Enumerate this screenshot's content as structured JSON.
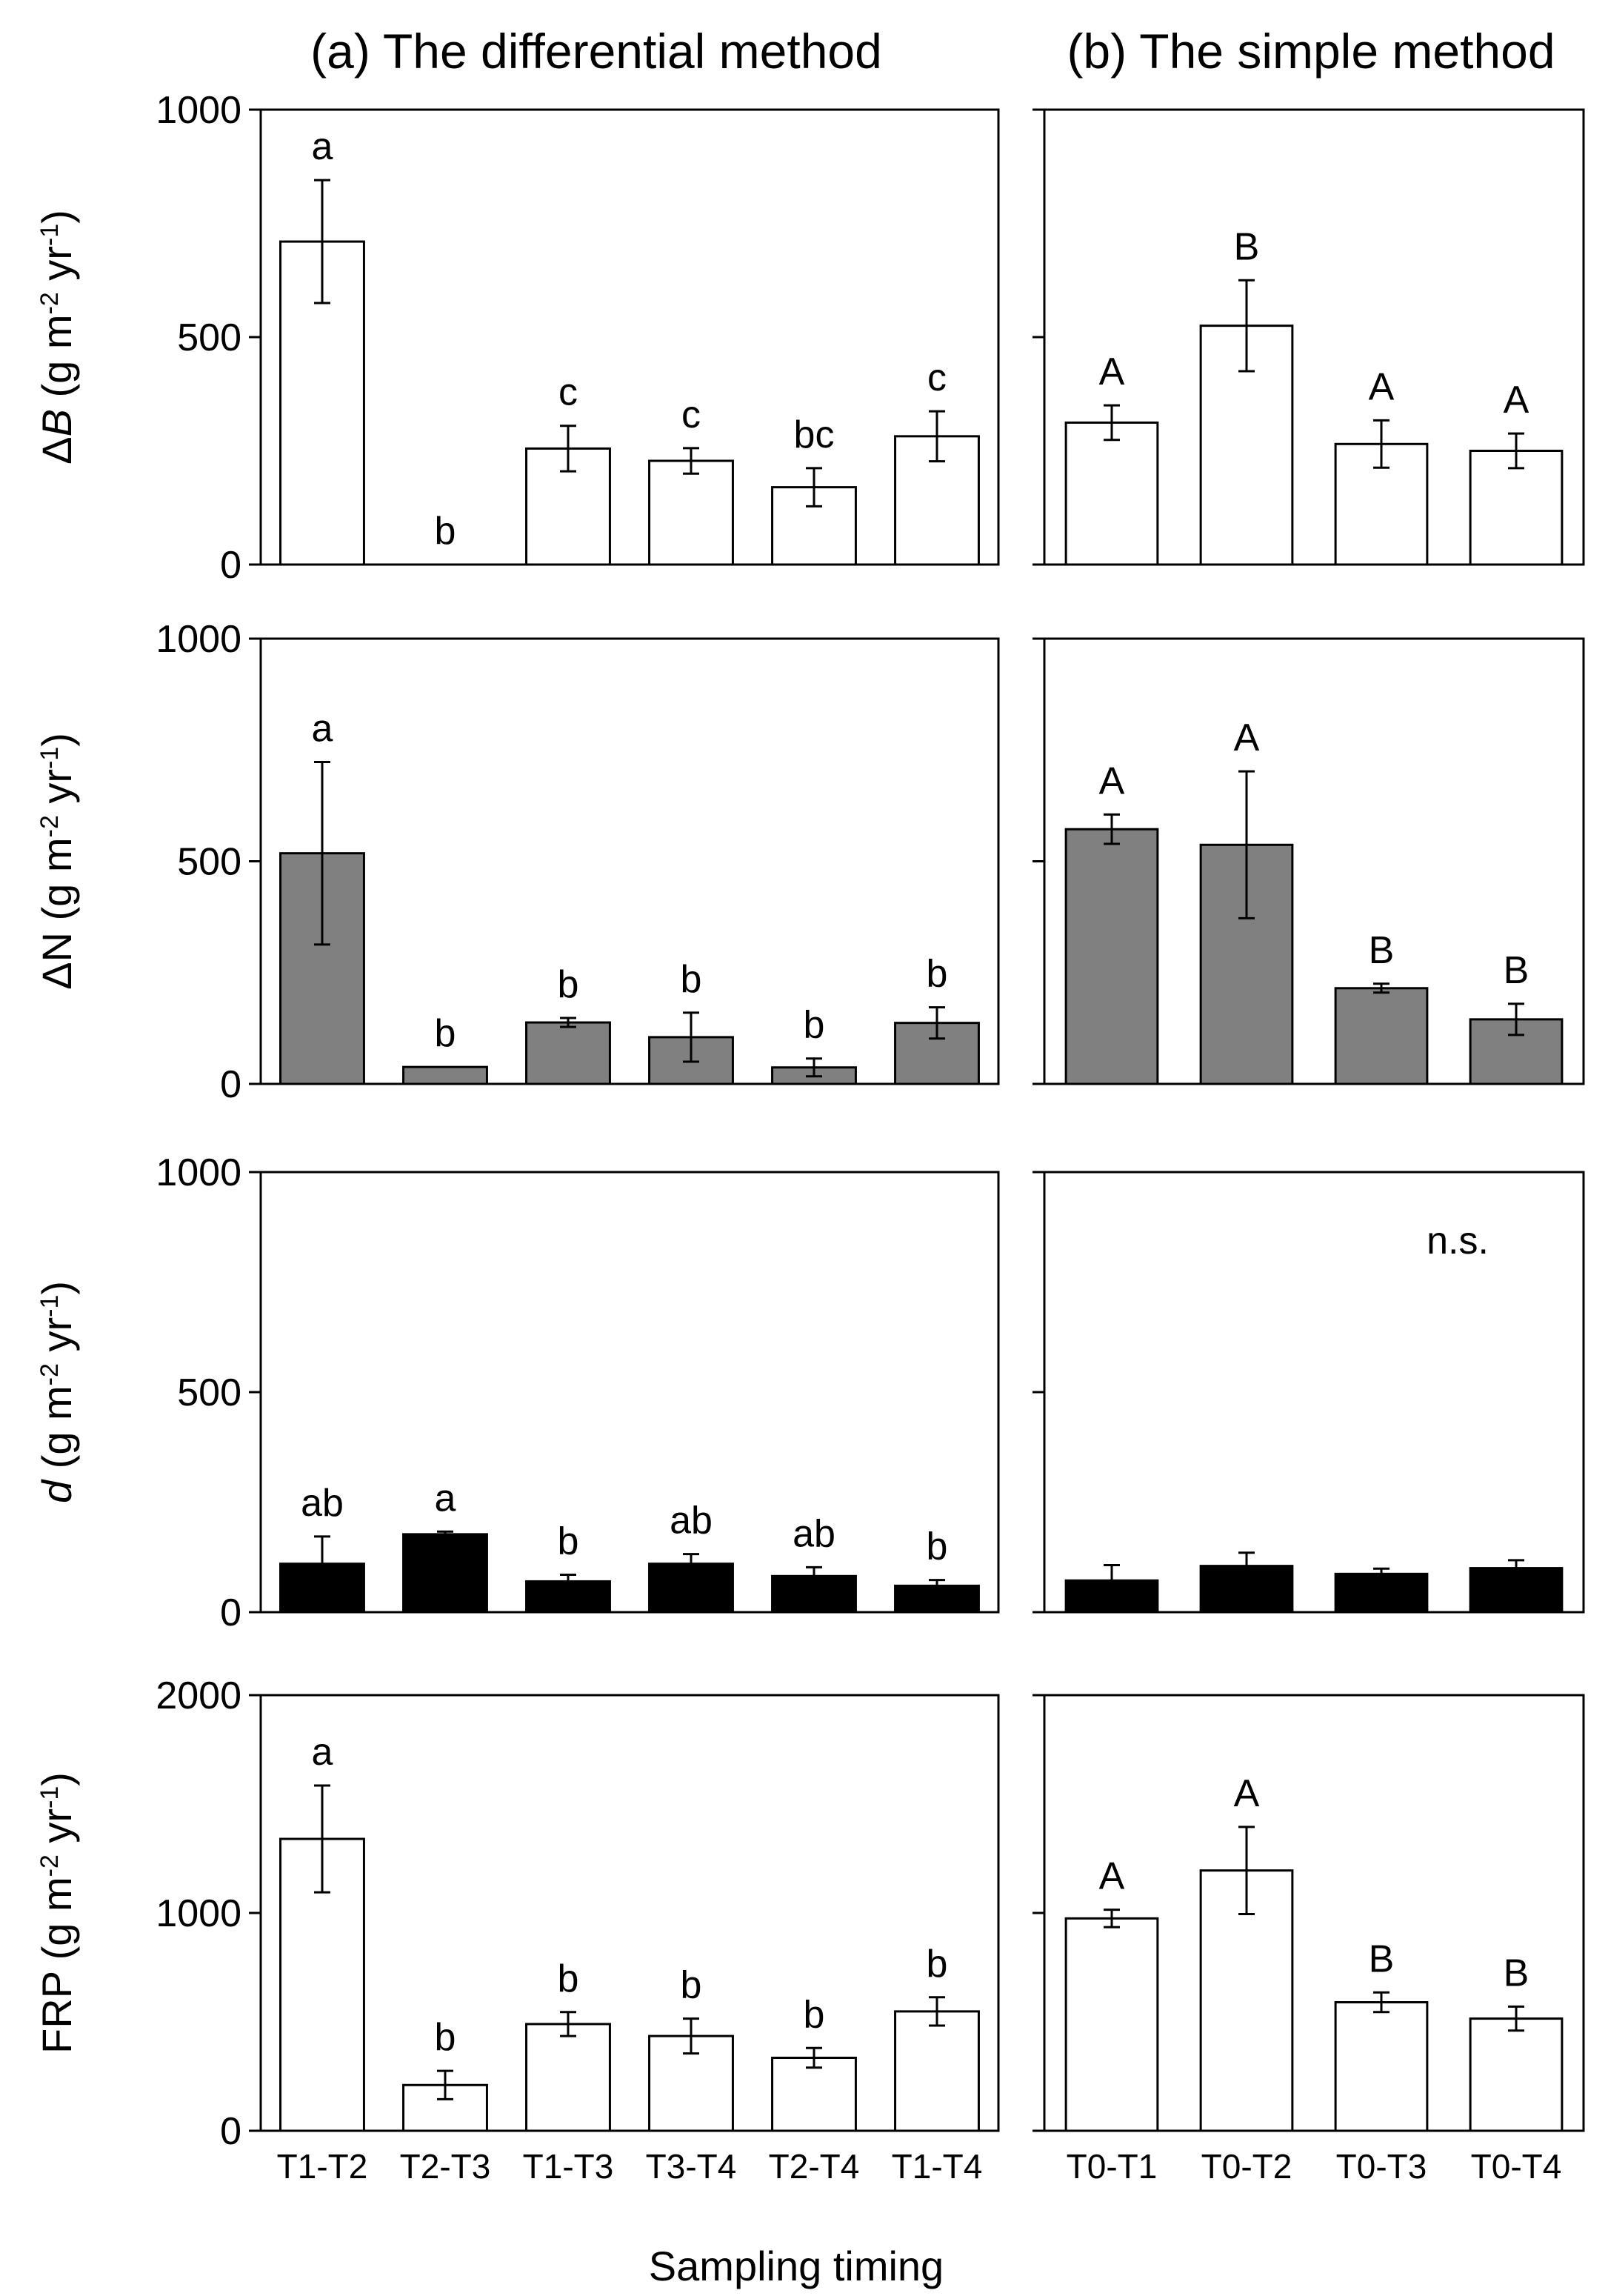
{
  "titles": {
    "a": "(a) The differential method",
    "b": "(b) The simple method"
  },
  "xlabel": "Sampling timing",
  "colors": {
    "white": "#ffffff",
    "gray": "#808080",
    "black": "#000000"
  },
  "chart_data": [
    {
      "type": "bar",
      "panel": "a",
      "row": 0,
      "ylabel": "ΔB (g m-2 yr-1)",
      "ylabel_parts": {
        "pre": "Δ",
        "var": "B",
        "open": " (g m",
        "exp1": "-2",
        "mid": " yr",
        "exp2": "-1",
        "close": ")"
      },
      "ylim": [
        0,
        1000
      ],
      "yticks": [
        0,
        500,
        1000
      ],
      "ytick_labels": [
        "0",
        "500",
        "1000"
      ],
      "fill": "#ffffff",
      "categories": [
        "T1-T2",
        "T2-T3",
        "T1-T3",
        "T3-T4",
        "T2-T4",
        "T1-T4"
      ],
      "values": [
        710,
        0,
        255,
        228,
        170,
        282
      ],
      "errors": [
        135,
        0,
        50,
        28,
        42,
        55
      ],
      "letters": [
        "a",
        "b",
        "c",
        "c",
        "bc",
        "c"
      ]
    },
    {
      "type": "bar",
      "panel": "b",
      "row": 0,
      "ylabel": "ΔB (g m-2 yr-1)",
      "ylim": [
        0,
        1000
      ],
      "yticks": [
        0,
        500,
        1000
      ],
      "fill": "#ffffff",
      "categories": [
        "T0-T1",
        "T0-T2",
        "T0-T3",
        "T0-T4"
      ],
      "values": [
        312,
        525,
        265,
        250
      ],
      "errors": [
        38,
        100,
        52,
        38
      ],
      "letters": [
        "A",
        "B",
        "A",
        "A"
      ]
    },
    {
      "type": "bar",
      "panel": "a",
      "row": 1,
      "ylabel": "ΔN (g m-2 yr-1)",
      "ylabel_parts": {
        "pre": "",
        "var": "ΔN",
        "open": " (g m",
        "exp1": "-2",
        "mid": " yr",
        "exp2": "-1",
        "close": ")"
      },
      "ylabel_italic": false,
      "ylim": [
        0,
        1000
      ],
      "yticks": [
        0,
        500,
        1000
      ],
      "ytick_labels": [
        "0",
        "500",
        "1000"
      ],
      "fill": "#808080",
      "categories": [
        "T1-T2",
        "T2-T3",
        "T1-T3",
        "T3-T4",
        "T2-T4",
        "T1-T4"
      ],
      "values": [
        518,
        38,
        138,
        105,
        37,
        137
      ],
      "errors": [
        205,
        0,
        10,
        55,
        20,
        35
      ],
      "letters": [
        "a",
        "b",
        "b",
        "b",
        "b",
        "b"
      ]
    },
    {
      "type": "bar",
      "panel": "b",
      "row": 1,
      "ylabel": "ΔN (g m-2 yr-1)",
      "ylim": [
        0,
        1000
      ],
      "yticks": [
        0,
        500,
        1000
      ],
      "fill": "#808080",
      "categories": [
        "T0-T1",
        "T0-T2",
        "T0-T3",
        "T0-T4"
      ],
      "values": [
        572,
        537,
        215,
        145
      ],
      "errors": [
        33,
        165,
        10,
        35
      ],
      "letters": [
        "A",
        "A",
        "B",
        "B"
      ]
    },
    {
      "type": "bar",
      "panel": "a",
      "row": 2,
      "ylabel": "d (g m-2 yr-1)",
      "ylabel_parts": {
        "pre": "",
        "var": "d",
        "open": " (g m",
        "exp1": "-2",
        "mid": " yr",
        "exp2": "-1",
        "close": ")"
      },
      "ylim": [
        0,
        1000
      ],
      "yticks": [
        0,
        500,
        1000
      ],
      "ytick_labels": [
        "0",
        "500",
        "1000"
      ],
      "fill": "#000000",
      "categories": [
        "T1-T2",
        "T2-T3",
        "T1-T3",
        "T3-T4",
        "T2-T4",
        "T1-T4"
      ],
      "values": [
        110,
        177,
        70,
        110,
        82,
        60
      ],
      "errors": [
        62,
        6,
        15,
        22,
        20,
        13
      ],
      "letters": [
        "ab",
        "a",
        "b",
        "ab",
        "ab",
        "b"
      ]
    },
    {
      "type": "bar",
      "panel": "b",
      "row": 2,
      "ylabel": "d (g m-2 yr-1)",
      "ylim": [
        0,
        1000
      ],
      "yticks": [
        0,
        500,
        1000
      ],
      "fill": "#000000",
      "categories": [
        "T0-T1",
        "T0-T2",
        "T0-T3",
        "T0-T4"
      ],
      "values": [
        72,
        105,
        87,
        100
      ],
      "errors": [
        35,
        30,
        12,
        18
      ],
      "letters": [],
      "annotation": "n.s."
    },
    {
      "type": "bar",
      "panel": "a",
      "row": 3,
      "ylabel": "FRP (g m-2 yr-1)",
      "ylabel_parts": {
        "pre": "",
        "var": "FRP",
        "open": " (g m",
        "exp1": "-2",
        "mid": " yr",
        "exp2": "-1",
        "close": ")"
      },
      "ylabel_italic": false,
      "ylim": [
        0,
        2000
      ],
      "yticks": [
        0,
        1000,
        2000
      ],
      "ytick_labels": [
        "0",
        "1000",
        "2000"
      ],
      "fill": "#ffffff",
      "categories": [
        "T1-T2",
        "T2-T3",
        "T1-T3",
        "T3-T4",
        "T2-T4",
        "T1-T4"
      ],
      "values": [
        1340,
        210,
        490,
        435,
        335,
        548
      ],
      "errors": [
        245,
        65,
        55,
        80,
        45,
        65
      ],
      "letters": [
        "a",
        "b",
        "b",
        "b",
        "b",
        "b"
      ]
    },
    {
      "type": "bar",
      "panel": "b",
      "row": 3,
      "ylabel": "FRP (g m-2 yr-1)",
      "ylim": [
        0,
        2000
      ],
      "yticks": [
        0,
        1000,
        2000
      ],
      "fill": "#ffffff",
      "categories": [
        "T0-T1",
        "T0-T2",
        "T0-T3",
        "T0-T4"
      ],
      "values": [
        975,
        1195,
        590,
        515
      ],
      "errors": [
        40,
        200,
        45,
        55
      ],
      "letters": [
        "A",
        "A",
        "B",
        "B"
      ]
    }
  ]
}
